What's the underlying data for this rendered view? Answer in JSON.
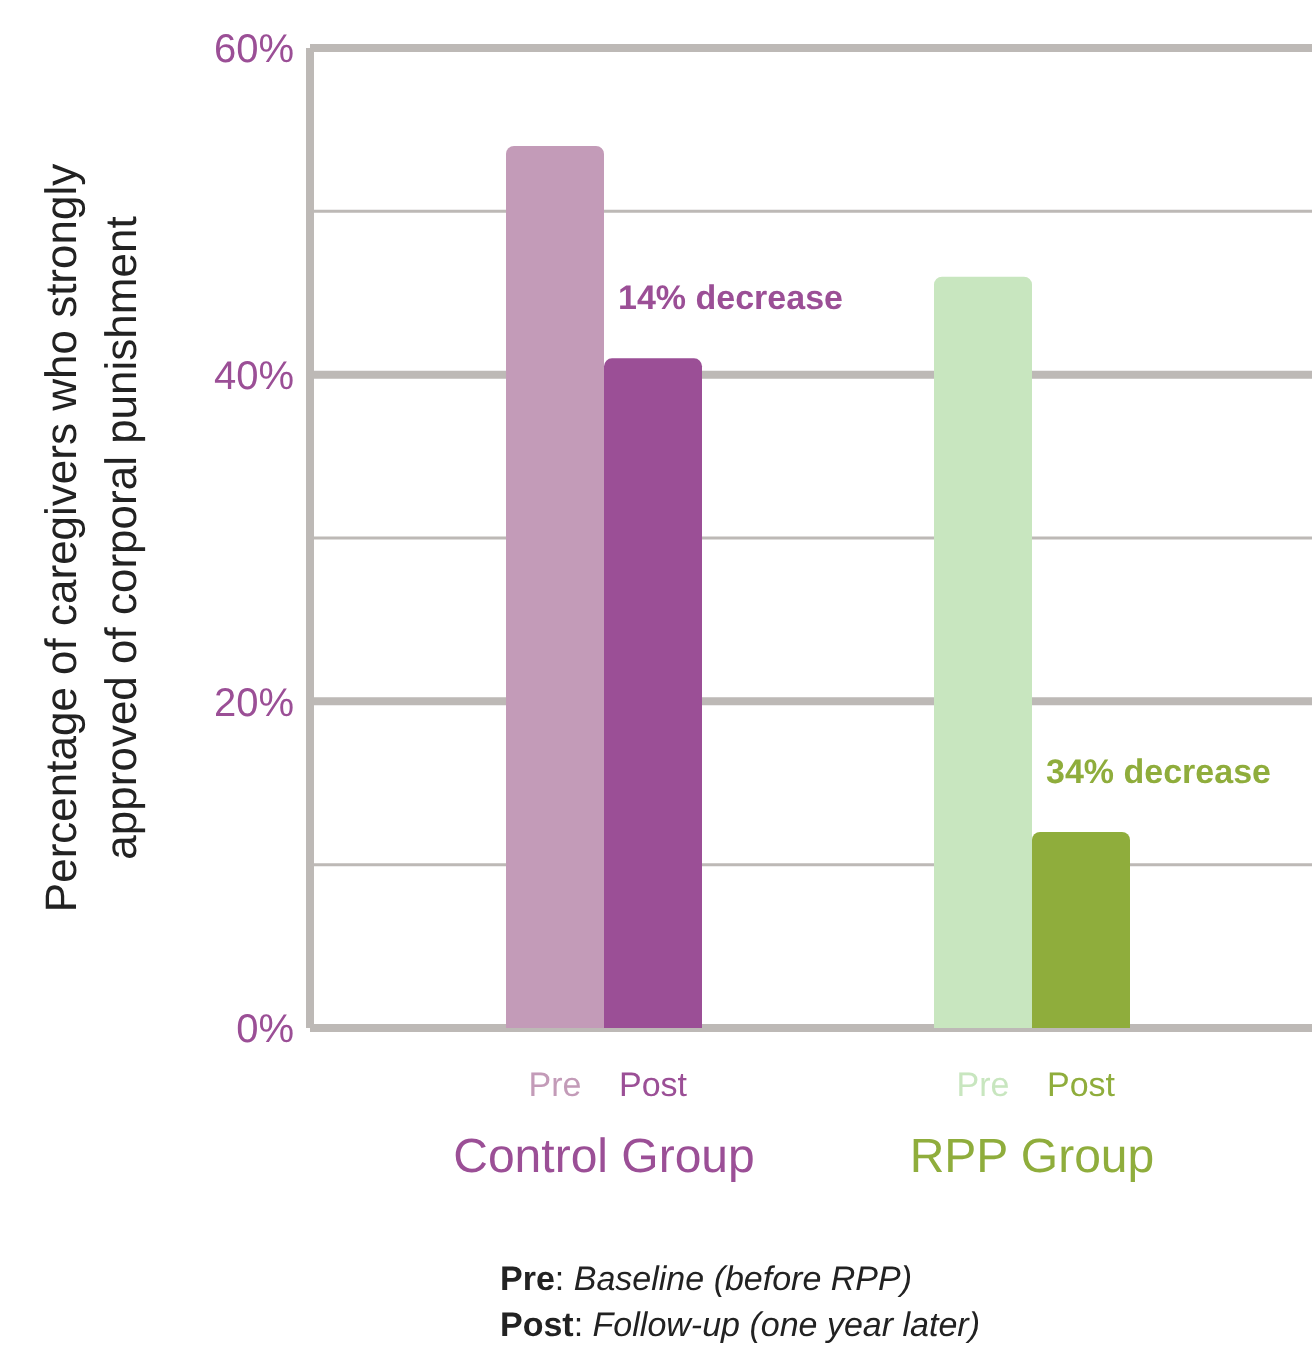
{
  "chart_data": {
    "type": "bar",
    "ylabel": "Percentage of caregivers who strongly approved of corporal punishment",
    "categories": [
      "Control Group",
      "RPP Group"
    ],
    "series": [
      {
        "name": "Pre",
        "colors": [
          "#c39bb8",
          "#c8e6bf"
        ],
        "values": [
          54,
          46
        ]
      },
      {
        "name": "Post",
        "colors": [
          "#9b4f96",
          "#8fad3c"
        ],
        "values": [
          41,
          12
        ]
      }
    ],
    "ylim": [
      0,
      60
    ],
    "yticks": [
      {
        "value": 0,
        "label": "0%"
      },
      {
        "value": 10,
        "label": null
      },
      {
        "value": 20,
        "label": "20%"
      },
      {
        "value": 30,
        "label": null
      },
      {
        "value": 40,
        "label": "40%"
      },
      {
        "value": 50,
        "label": null
      },
      {
        "value": 60,
        "label": "60%"
      }
    ],
    "grid": "y",
    "annotations": [
      "14% decrease",
      "34% decrease",
      "Pre: Baseline (before RPP)",
      "Post: Follow-up (one year later)"
    ]
  }
}
